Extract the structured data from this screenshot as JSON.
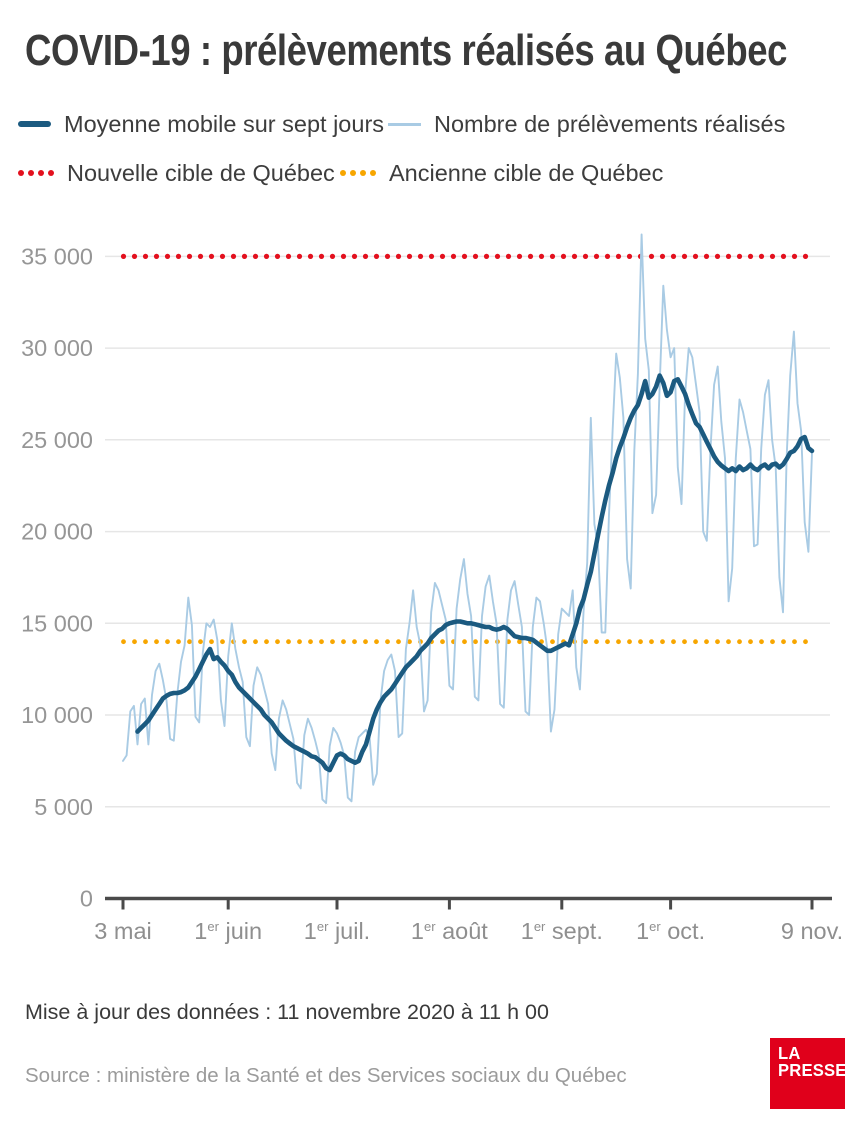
{
  "title": "COVID-19 : prélèvements réalisés au Québec",
  "legend": {
    "moving_avg": "Moyenne mobile sur sept jours",
    "daily": "Nombre de prélèvements réalisés",
    "new_target": "Nouvelle cible de Québec",
    "old_target": "Ancienne cible de Québec"
  },
  "footer": {
    "updated": "Mise à jour des données : 11 novembre 2020 à 11 h 00",
    "source": "Source : ministère de la Santé et des Services sociaux du Québec",
    "logo_line1": "LA",
    "logo_line2": "PRESSE"
  },
  "colors": {
    "moving_avg": "#1b5a80",
    "daily": "#a9cbe4",
    "new_target": "#e3101e",
    "old_target": "#f7a600",
    "grid": "#e6e6e6",
    "axis": "#4a4a4a",
    "tick_label": "#969696",
    "logo_bg": "#e0001b"
  },
  "chart_data": {
    "type": "line",
    "title": "COVID-19 : prélèvements réalisés au Québec",
    "xlabel": "",
    "ylabel": "",
    "grid": "horizontal",
    "legend_position": "top",
    "x_range_days": 190,
    "x_start_date": "3 mai 2020",
    "x_end_date": "9 nov. 2020",
    "ylim": [
      0,
      36500
    ],
    "y_ticks": [
      0,
      5000,
      10000,
      15000,
      20000,
      25000,
      30000,
      35000
    ],
    "y_tick_labels": [
      "0",
      "5 000",
      "10 000",
      "15 000",
      "20 000",
      "25 000",
      "30 000",
      "35 000"
    ],
    "x_ticks": [
      {
        "day": 0,
        "pre": "3",
        "sup": "",
        "post": " mai"
      },
      {
        "day": 29,
        "pre": "1",
        "sup": "er",
        "post": " juin"
      },
      {
        "day": 59,
        "pre": "1",
        "sup": "er",
        "post": " juil."
      },
      {
        "day": 90,
        "pre": "1",
        "sup": "er",
        "post": " août"
      },
      {
        "day": 121,
        "pre": "1",
        "sup": "er",
        "post": " sept."
      },
      {
        "day": 151,
        "pre": "1",
        "sup": "er",
        "post": " oct."
      },
      {
        "day": 190,
        "pre": "9",
        "sup": "",
        "post": " nov."
      }
    ],
    "targets": [
      {
        "name": "Nouvelle cible de Québec",
        "key": "new-target",
        "value": 35000,
        "color": "#e3101e",
        "style": "dotted"
      },
      {
        "name": "Ancienne cible de Québec",
        "key": "old-target",
        "value": 14000,
        "color": "#f7a600",
        "style": "dotted"
      }
    ],
    "series": [
      {
        "name": "Nombre de prélèvements réalisés",
        "color": "#a9cbe4",
        "start_day": 0,
        "values": [
          7500,
          7800,
          10200,
          10500,
          8400,
          10600,
          10900,
          8400,
          11100,
          12400,
          12800,
          11900,
          10800,
          8700,
          8600,
          11200,
          12900,
          13800,
          16400,
          14900,
          9900,
          9600,
          13400,
          15000,
          14800,
          15200,
          14100,
          10800,
          9400,
          13200,
          15000,
          13600,
          12600,
          11800,
          8800,
          8300,
          11600,
          12600,
          12200,
          11400,
          10600,
          7900,
          7000,
          9800,
          10800,
          10300,
          9500,
          8700,
          6300,
          6000,
          8900,
          9800,
          9300,
          8600,
          7800,
          5400,
          5200,
          8300,
          9300,
          9000,
          8500,
          7800,
          5500,
          5300,
          8000,
          8800,
          9000,
          9200,
          8800,
          6200,
          6800,
          10800,
          12400,
          13000,
          13300,
          12400,
          8800,
          9000,
          13600,
          15000,
          16800,
          14800,
          13800,
          10200,
          10800,
          15600,
          17200,
          16800,
          16000,
          15200,
          11600,
          11400,
          15800,
          17400,
          18500,
          16600,
          15400,
          11000,
          10800,
          15400,
          17000,
          17600,
          16200,
          15000,
          10600,
          10400,
          15200,
          16800,
          17300,
          16000,
          14800,
          10200,
          10000,
          14800,
          16400,
          16200,
          15000,
          13600,
          9100,
          10300,
          14400,
          15800,
          15600,
          15400,
          16800,
          12600,
          11400,
          15600,
          18300,
          26200,
          20400,
          19200,
          14500,
          14500,
          20800,
          25500,
          29700,
          28400,
          26200,
          18500,
          16900,
          24400,
          28600,
          36200,
          30500,
          28800,
          21000,
          22000,
          28000,
          33400,
          31000,
          29500,
          30000,
          23500,
          21500,
          27500,
          30000,
          29500,
          28000,
          26500,
          20000,
          19500,
          24500,
          28000,
          29000,
          26000,
          24000,
          16200,
          18000,
          24000,
          27200,
          26500,
          25500,
          24500,
          19200,
          19300,
          24500,
          27450,
          28250,
          25000,
          23500,
          17500,
          15600,
          24000,
          28500,
          30900,
          27000,
          25500,
          20500,
          18900,
          24300
        ]
      },
      {
        "name": "Moyenne mobile sur sept jours",
        "color": "#1b5a80",
        "start_day": 4,
        "values": [
          9100,
          9300,
          9500,
          9700,
          10000,
          10300,
          10600,
          10900,
          11050,
          11150,
          11200,
          11200,
          11250,
          11350,
          11500,
          11800,
          12100,
          12500,
          12900,
          13300,
          13600,
          13050,
          13150,
          12900,
          12700,
          12400,
          12200,
          11800,
          11500,
          11300,
          11100,
          10900,
          10700,
          10500,
          10300,
          10000,
          9800,
          9600,
          9300,
          9000,
          8800,
          8600,
          8450,
          8300,
          8200,
          8100,
          8000,
          7900,
          7750,
          7700,
          7550,
          7400,
          7100,
          7000,
          7400,
          7800,
          7900,
          7800,
          7600,
          7500,
          7400,
          7500,
          8000,
          8400,
          9100,
          9800,
          10300,
          10700,
          11000,
          11200,
          11400,
          11700,
          12000,
          12300,
          12600,
          12800,
          13000,
          13200,
          13500,
          13700,
          13900,
          14200,
          14400,
          14600,
          14700,
          14900,
          15000,
          15050,
          15100,
          15100,
          15050,
          15000,
          15000,
          14950,
          14900,
          14850,
          14800,
          14800,
          14700,
          14650,
          14700,
          14800,
          14700,
          14500,
          14300,
          14250,
          14200,
          14200,
          14150,
          14100,
          13950,
          13800,
          13650,
          13500,
          13500,
          13600,
          13700,
          13800,
          13900,
          13800,
          14400,
          15000,
          15800,
          16300,
          17100,
          17800,
          18800,
          19800,
          20800,
          21700,
          22500,
          23200,
          24000,
          24600,
          25100,
          25700,
          26200,
          26600,
          26900,
          27500,
          28200,
          27300,
          27500,
          27900,
          28500,
          28100,
          27400,
          27600,
          28200,
          28300,
          27900,
          27500,
          26900,
          26400,
          25900,
          25700,
          25300,
          24900,
          24500,
          24100,
          23800,
          23600,
          23450,
          23300,
          23450,
          23300,
          23550,
          23350,
          23450,
          23650,
          23450,
          23350,
          23550,
          23650,
          23450,
          23650,
          23700,
          23500,
          23650,
          23950,
          24300,
          24400,
          24650,
          25050,
          25150,
          24550,
          24400
        ]
      }
    ]
  }
}
